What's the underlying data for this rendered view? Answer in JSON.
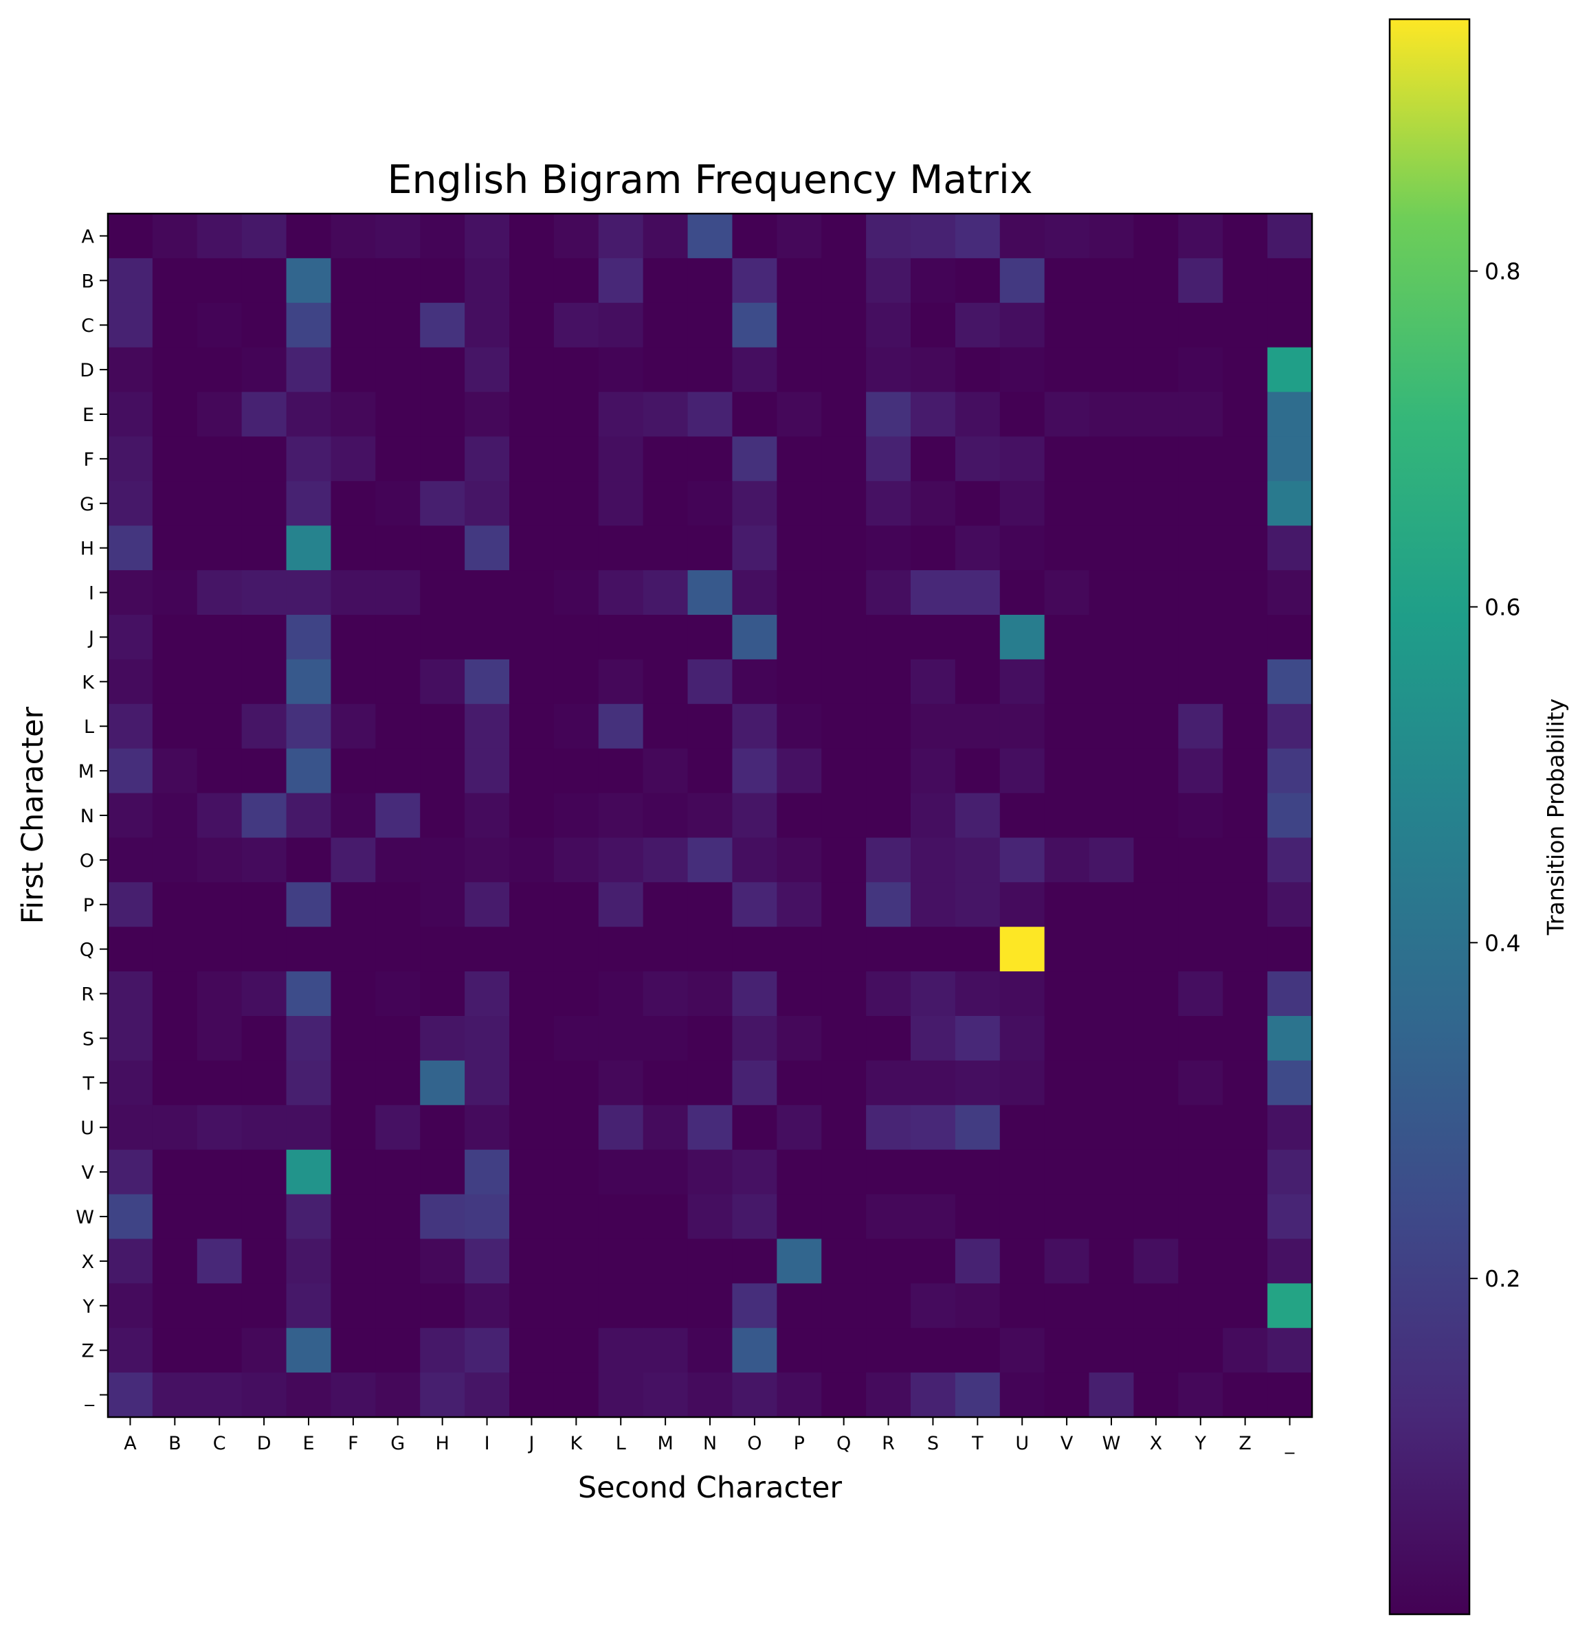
{
  "chart_data": {
    "type": "heatmap",
    "title": "English Bigram Frequency Matrix",
    "xlabel": "Second Character",
    "ylabel": "First Character",
    "x_categories": [
      "A",
      "B",
      "C",
      "D",
      "E",
      "F",
      "G",
      "H",
      "I",
      "J",
      "K",
      "L",
      "M",
      "N",
      "O",
      "P",
      "Q",
      "R",
      "S",
      "T",
      "U",
      "V",
      "W",
      "X",
      "Y",
      "Z",
      "_"
    ],
    "y_categories": [
      "A",
      "B",
      "C",
      "D",
      "E",
      "F",
      "G",
      "H",
      "I",
      "J",
      "K",
      "L",
      "M",
      "N",
      "O",
      "P",
      "Q",
      "R",
      "S",
      "T",
      "U",
      "V",
      "W",
      "X",
      "Y",
      "Z",
      "_"
    ],
    "values": [
      [
        0.0,
        0.02,
        0.05,
        0.07,
        0.0,
        0.02,
        0.03,
        0.01,
        0.05,
        0.0,
        0.02,
        0.08,
        0.03,
        0.25,
        0.0,
        0.02,
        0.0,
        0.09,
        0.1,
        0.13,
        0.02,
        0.03,
        0.02,
        0.0,
        0.03,
        0.0,
        0.07
      ],
      [
        0.1,
        0.0,
        0.0,
        0.0,
        0.35,
        0.0,
        0.0,
        0.0,
        0.04,
        0.0,
        0.0,
        0.12,
        0.0,
        0.0,
        0.12,
        0.0,
        0.0,
        0.06,
        0.01,
        0.0,
        0.18,
        0.0,
        0.0,
        0.0,
        0.09,
        0.0,
        0.0
      ],
      [
        0.1,
        0.0,
        0.01,
        0.0,
        0.22,
        0.0,
        0.0,
        0.16,
        0.04,
        0.0,
        0.05,
        0.04,
        0.0,
        0.0,
        0.25,
        0.0,
        0.0,
        0.04,
        0.0,
        0.06,
        0.04,
        0.0,
        0.0,
        0.0,
        0.0,
        0.0,
        0.0
      ],
      [
        0.02,
        0.0,
        0.0,
        0.01,
        0.1,
        0.0,
        0.0,
        0.0,
        0.06,
        0.0,
        0.0,
        0.01,
        0.0,
        0.0,
        0.04,
        0.0,
        0.0,
        0.03,
        0.02,
        0.0,
        0.01,
        0.0,
        0.0,
        0.0,
        0.01,
        0.0,
        0.6
      ],
      [
        0.04,
        0.0,
        0.02,
        0.1,
        0.04,
        0.02,
        0.0,
        0.0,
        0.02,
        0.0,
        0.0,
        0.05,
        0.06,
        0.1,
        0.0,
        0.02,
        0.0,
        0.15,
        0.08,
        0.04,
        0.0,
        0.03,
        0.02,
        0.02,
        0.02,
        0.0,
        0.38
      ],
      [
        0.06,
        0.0,
        0.0,
        0.0,
        0.08,
        0.05,
        0.0,
        0.0,
        0.07,
        0.0,
        0.0,
        0.04,
        0.0,
        0.0,
        0.15,
        0.0,
        0.0,
        0.1,
        0.0,
        0.06,
        0.05,
        0.0,
        0.0,
        0.0,
        0.0,
        0.0,
        0.38
      ],
      [
        0.07,
        0.0,
        0.0,
        0.0,
        0.1,
        0.0,
        0.01,
        0.09,
        0.06,
        0.0,
        0.0,
        0.04,
        0.0,
        0.01,
        0.06,
        0.0,
        0.0,
        0.05,
        0.02,
        0.0,
        0.03,
        0.0,
        0.0,
        0.0,
        0.0,
        0.0,
        0.44
      ],
      [
        0.17,
        0.0,
        0.0,
        0.0,
        0.48,
        0.0,
        0.0,
        0.0,
        0.18,
        0.0,
        0.0,
        0.0,
        0.0,
        0.0,
        0.08,
        0.0,
        0.0,
        0.01,
        0.0,
        0.03,
        0.01,
        0.0,
        0.0,
        0.0,
        0.0,
        0.0,
        0.07
      ],
      [
        0.02,
        0.01,
        0.06,
        0.07,
        0.07,
        0.04,
        0.04,
        0.0,
        0.0,
        0.0,
        0.01,
        0.05,
        0.07,
        0.3,
        0.04,
        0.0,
        0.0,
        0.04,
        0.12,
        0.12,
        0.0,
        0.02,
        0.0,
        0.0,
        0.0,
        0.0,
        0.02
      ],
      [
        0.05,
        0.0,
        0.0,
        0.0,
        0.22,
        0.0,
        0.0,
        0.0,
        0.0,
        0.0,
        0.0,
        0.0,
        0.0,
        0.0,
        0.3,
        0.0,
        0.0,
        0.0,
        0.0,
        0.0,
        0.45,
        0.0,
        0.0,
        0.0,
        0.0,
        0.0,
        0.0
      ],
      [
        0.03,
        0.0,
        0.0,
        0.0,
        0.3,
        0.0,
        0.0,
        0.04,
        0.18,
        0.0,
        0.0,
        0.02,
        0.0,
        0.1,
        0.01,
        0.0,
        0.0,
        0.0,
        0.04,
        0.0,
        0.04,
        0.0,
        0.0,
        0.0,
        0.0,
        0.0,
        0.24
      ],
      [
        0.08,
        0.0,
        0.0,
        0.06,
        0.15,
        0.03,
        0.0,
        0.0,
        0.08,
        0.0,
        0.01,
        0.15,
        0.0,
        0.0,
        0.08,
        0.01,
        0.0,
        0.0,
        0.02,
        0.02,
        0.02,
        0.0,
        0.0,
        0.0,
        0.09,
        0.0,
        0.1
      ],
      [
        0.14,
        0.02,
        0.0,
        0.0,
        0.28,
        0.0,
        0.0,
        0.0,
        0.08,
        0.0,
        0.0,
        0.0,
        0.02,
        0.0,
        0.12,
        0.05,
        0.0,
        0.0,
        0.03,
        0.0,
        0.04,
        0.0,
        0.0,
        0.0,
        0.05,
        0.0,
        0.18
      ],
      [
        0.03,
        0.01,
        0.05,
        0.18,
        0.07,
        0.01,
        0.13,
        0.0,
        0.03,
        0.0,
        0.01,
        0.02,
        0.01,
        0.02,
        0.06,
        0.0,
        0.0,
        0.0,
        0.04,
        0.09,
        0.0,
        0.0,
        0.0,
        0.0,
        0.01,
        0.0,
        0.22
      ],
      [
        0.01,
        0.01,
        0.02,
        0.03,
        0.0,
        0.08,
        0.01,
        0.01,
        0.02,
        0.01,
        0.03,
        0.05,
        0.07,
        0.14,
        0.04,
        0.02,
        0.0,
        0.09,
        0.05,
        0.06,
        0.11,
        0.04,
        0.06,
        0.0,
        0.0,
        0.0,
        0.1
      ],
      [
        0.09,
        0.0,
        0.0,
        0.0,
        0.2,
        0.0,
        0.0,
        0.01,
        0.08,
        0.0,
        0.0,
        0.09,
        0.0,
        0.0,
        0.11,
        0.05,
        0.0,
        0.17,
        0.05,
        0.06,
        0.03,
        0.0,
        0.0,
        0.0,
        0.0,
        0.0,
        0.05
      ],
      [
        0.0,
        0.0,
        0.0,
        0.0,
        0.0,
        0.0,
        0.0,
        0.0,
        0.0,
        0.0,
        0.0,
        0.0,
        0.0,
        0.0,
        0.0,
        0.0,
        0.0,
        0.0,
        0.0,
        0.0,
        0.95,
        0.0,
        0.0,
        0.0,
        0.0,
        0.0,
        0.0
      ],
      [
        0.06,
        0.0,
        0.02,
        0.04,
        0.25,
        0.0,
        0.01,
        0.0,
        0.08,
        0.0,
        0.0,
        0.01,
        0.03,
        0.02,
        0.1,
        0.0,
        0.0,
        0.04,
        0.07,
        0.04,
        0.03,
        0.0,
        0.0,
        0.0,
        0.04,
        0.0,
        0.17
      ],
      [
        0.06,
        0.0,
        0.02,
        0.0,
        0.1,
        0.0,
        0.0,
        0.06,
        0.07,
        0.0,
        0.01,
        0.01,
        0.01,
        0.0,
        0.06,
        0.02,
        0.0,
        0.0,
        0.08,
        0.12,
        0.04,
        0.0,
        0.0,
        0.0,
        0.0,
        0.0,
        0.41
      ],
      [
        0.04,
        0.0,
        0.0,
        0.0,
        0.09,
        0.0,
        0.0,
        0.34,
        0.07,
        0.0,
        0.0,
        0.02,
        0.0,
        0.0,
        0.1,
        0.0,
        0.0,
        0.03,
        0.03,
        0.04,
        0.03,
        0.0,
        0.0,
        0.0,
        0.02,
        0.0,
        0.24
      ],
      [
        0.03,
        0.03,
        0.05,
        0.04,
        0.04,
        0.0,
        0.05,
        0.0,
        0.03,
        0.0,
        0.0,
        0.1,
        0.03,
        0.13,
        0.0,
        0.04,
        0.0,
        0.11,
        0.12,
        0.19,
        0.0,
        0.0,
        0.0,
        0.0,
        0.0,
        0.0,
        0.05
      ],
      [
        0.09,
        0.0,
        0.0,
        0.0,
        0.55,
        0.0,
        0.0,
        0.0,
        0.2,
        0.0,
        0.0,
        0.01,
        0.01,
        0.03,
        0.05,
        0.0,
        0.0,
        0.0,
        0.0,
        0.0,
        0.0,
        0.0,
        0.0,
        0.0,
        0.0,
        0.0,
        0.09
      ],
      [
        0.22,
        0.0,
        0.0,
        0.0,
        0.09,
        0.0,
        0.0,
        0.17,
        0.18,
        0.0,
        0.0,
        0.0,
        0.0,
        0.04,
        0.07,
        0.0,
        0.0,
        0.02,
        0.02,
        0.0,
        0.0,
        0.0,
        0.0,
        0.0,
        0.0,
        0.0,
        0.11
      ],
      [
        0.07,
        0.0,
        0.12,
        0.0,
        0.06,
        0.0,
        0.0,
        0.02,
        0.1,
        0.0,
        0.0,
        0.0,
        0.0,
        0.0,
        0.0,
        0.35,
        0.0,
        0.0,
        0.0,
        0.1,
        0.0,
        0.04,
        0.0,
        0.04,
        0.0,
        0.0,
        0.05
      ],
      [
        0.03,
        0.0,
        0.0,
        0.0,
        0.07,
        0.0,
        0.0,
        0.0,
        0.03,
        0.0,
        0.0,
        0.0,
        0.0,
        0.0,
        0.14,
        0.0,
        0.0,
        0.0,
        0.03,
        0.02,
        0.0,
        0.0,
        0.0,
        0.0,
        0.0,
        0.0,
        0.62
      ],
      [
        0.05,
        0.0,
        0.0,
        0.02,
        0.33,
        0.0,
        0.0,
        0.07,
        0.1,
        0.0,
        0.0,
        0.04,
        0.04,
        0.01,
        0.3,
        0.0,
        0.0,
        0.0,
        0.0,
        0.0,
        0.02,
        0.0,
        0.0,
        0.0,
        0.0,
        0.03,
        0.06
      ],
      [
        0.13,
        0.05,
        0.05,
        0.04,
        0.02,
        0.04,
        0.02,
        0.09,
        0.06,
        0.0,
        0.0,
        0.04,
        0.05,
        0.03,
        0.06,
        0.03,
        0.0,
        0.03,
        0.1,
        0.17,
        0.01,
        0.0,
        0.09,
        0.0,
        0.02,
        0.0,
        0.0
      ]
    ],
    "colormap": "viridis",
    "colorbar": {
      "label": "Transition Probability",
      "range": [
        0.0,
        0.95
      ],
      "ticks": [
        0.2,
        0.4,
        0.6,
        0.8
      ],
      "tick_labels": [
        "0.2",
        "0.4",
        "0.6",
        "0.8"
      ]
    }
  }
}
